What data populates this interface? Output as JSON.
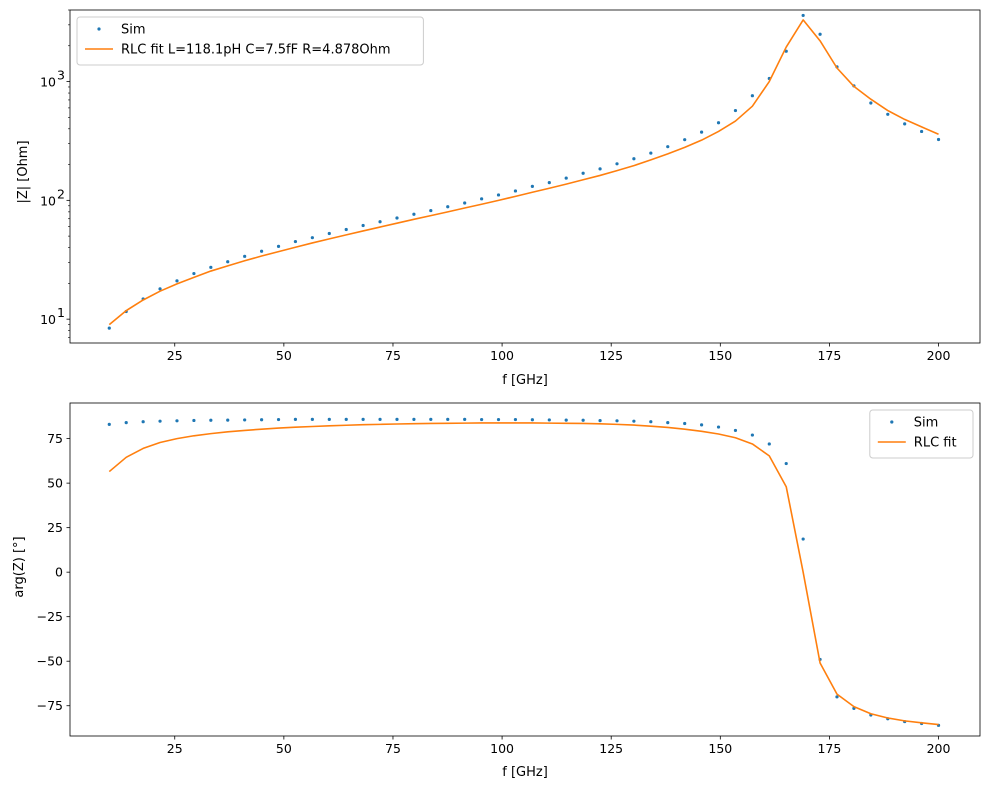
{
  "chart_data": [
    {
      "type": "line",
      "yscale": "log",
      "xlabel": "f [GHz]",
      "ylabel": "|Z| [Ohm]",
      "xlim": [
        1,
        209.5
      ],
      "ylim": [
        6.3,
        4000
      ],
      "xticks": [
        25,
        50,
        75,
        100,
        125,
        150,
        175,
        200
      ],
      "xtick_labels": [
        "25",
        "50",
        "75",
        "100",
        "125",
        "150",
        "175",
        "200"
      ],
      "yticks": [
        10,
        100,
        1000
      ],
      "ytick_labels": [
        "10",
        "10",
        "10"
      ],
      "ytick_exponents": [
        "1",
        "2",
        "3"
      ],
      "legend_position": "upper-left",
      "series": [
        {
          "name": "Sim",
          "style": "markers",
          "color": "#1f77b4",
          "x": [
            10,
            13.88,
            17.76,
            21.63,
            25.51,
            29.39,
            33.27,
            37.14,
            41.02,
            44.9,
            48.78,
            52.65,
            56.53,
            60.41,
            64.29,
            68.16,
            72.04,
            75.92,
            79.8,
            83.67,
            87.55,
            91.43,
            95.31,
            99.18,
            103.06,
            106.94,
            110.82,
            114.69,
            118.57,
            122.45,
            126.33,
            130.2,
            134.08,
            137.96,
            141.84,
            145.71,
            149.59,
            153.47,
            157.35,
            161.22,
            165.1,
            168.98,
            172.86,
            176.73,
            180.61,
            184.49,
            188.37,
            192.24,
            196.12,
            200
          ],
          "y": [
            8.4,
            11.6,
            14.8,
            18,
            21,
            24.2,
            27.3,
            30.4,
            33.8,
            37.3,
            41,
            45,
            48.5,
            52.6,
            56.8,
            61.4,
            66,
            71,
            76.4,
            82,
            88.3,
            95,
            103,
            111,
            120,
            131,
            141,
            154,
            169,
            184,
            203,
            224,
            250,
            283,
            324,
            375,
            450,
            570,
            760,
            1060,
            1800,
            3600,
            2500,
            1330,
            920,
            660,
            530,
            440,
            380,
            325
          ]
        },
        {
          "name": "RLC fit  L=118.1pH  C=7.5fF  R=4.878Ohm",
          "style": "line",
          "color": "#ff7f0e",
          "x": [
            10,
            13.88,
            17.76,
            21.63,
            25.51,
            29.39,
            33.27,
            37.14,
            41.02,
            44.9,
            48.78,
            52.65,
            56.53,
            60.41,
            64.29,
            68.16,
            72.04,
            75.92,
            79.8,
            83.67,
            87.55,
            91.43,
            95.31,
            99.18,
            103.06,
            106.94,
            110.82,
            114.69,
            118.57,
            122.45,
            126.33,
            130.2,
            134.08,
            137.96,
            141.84,
            145.71,
            149.59,
            153.47,
            157.35,
            161.22,
            165.1,
            168.98,
            172.86,
            176.73,
            180.61,
            184.49,
            188.37,
            192.24,
            196.12,
            200
          ],
          "y": [
            9,
            11.8,
            14.5,
            17.2,
            19.8,
            22.5,
            25.4,
            28.1,
            31,
            34,
            37,
            40.3,
            43.8,
            47.4,
            51.2,
            55.3,
            59.6,
            64.2,
            69.2,
            74.4,
            80,
            86.2,
            92.7,
            100,
            108,
            117,
            126.5,
            137,
            149,
            162,
            178,
            196,
            219,
            246,
            279,
            321,
            380,
            465,
            620,
            1000,
            1950,
            3300,
            2200,
            1300,
            910,
            710,
            570,
            480,
            415,
            360
          ]
        }
      ]
    },
    {
      "type": "line",
      "yscale": "linear",
      "xlabel": "f [GHz]",
      "ylabel": "arg(Z) [°]",
      "xlim": [
        1,
        209.5
      ],
      "ylim": [
        -92,
        95
      ],
      "xticks": [
        25,
        50,
        75,
        100,
        125,
        150,
        175,
        200
      ],
      "xtick_labels": [
        "25",
        "50",
        "75",
        "100",
        "125",
        "150",
        "175",
        "200"
      ],
      "yticks": [
        -75,
        -50,
        -25,
        0,
        25,
        50,
        75
      ],
      "ytick_labels": [
        "−75",
        "−50",
        "−25",
        "0",
        "25",
        "50",
        "75"
      ],
      "legend_position": "upper-right",
      "series": [
        {
          "name": "Sim",
          "style": "markers",
          "color": "#1f77b4",
          "x": [
            10,
            13.88,
            17.76,
            21.63,
            25.51,
            29.39,
            33.27,
            37.14,
            41.02,
            44.9,
            48.78,
            52.65,
            56.53,
            60.41,
            64.29,
            68.16,
            72.04,
            75.92,
            79.8,
            83.67,
            87.55,
            91.43,
            95.31,
            99.18,
            103.06,
            106.94,
            110.82,
            114.69,
            118.57,
            122.45,
            126.33,
            130.2,
            134.08,
            137.96,
            141.84,
            145.71,
            149.59,
            153.47,
            157.35,
            161.22,
            165.1,
            168.98,
            172.86,
            176.73,
            180.61,
            184.49,
            188.37,
            192.24,
            196.12,
            200
          ],
          "y": [
            83,
            84,
            84.5,
            84.8,
            85,
            85.2,
            85.3,
            85.4,
            85.5,
            85.6,
            85.7,
            85.8,
            85.8,
            85.8,
            85.8,
            85.8,
            85.8,
            85.8,
            85.8,
            85.8,
            85.8,
            85.8,
            85.7,
            85.7,
            85.7,
            85.6,
            85.5,
            85.4,
            85.3,
            85.1,
            85,
            84.8,
            84.5,
            84,
            83.5,
            82.7,
            81.5,
            79.6,
            77,
            72,
            61,
            18.6,
            -49,
            -70,
            -76.5,
            -80.2,
            -82.3,
            -83.9,
            -85,
            -86
          ]
        },
        {
          "name": "RLC fit",
          "style": "line",
          "color": "#ff7f0e",
          "x": [
            10,
            13.88,
            17.76,
            21.63,
            25.51,
            29.39,
            33.27,
            37.14,
            41.02,
            44.9,
            48.78,
            52.65,
            56.53,
            60.41,
            64.29,
            68.16,
            72.04,
            75.92,
            79.8,
            83.67,
            87.55,
            91.43,
            95.31,
            99.18,
            103.06,
            106.94,
            110.82,
            114.69,
            118.57,
            122.45,
            126.33,
            130.2,
            134.08,
            137.96,
            141.84,
            145.71,
            149.59,
            153.47,
            157.35,
            161.22,
            165.1,
            168.98,
            172.86,
            176.73,
            180.61,
            184.49,
            188.37,
            192.24,
            196.12,
            200
          ],
          "y": [
            56.5,
            64.5,
            69.5,
            72.8,
            75,
            76.6,
            77.8,
            78.8,
            79.6,
            80.3,
            80.9,
            81.4,
            81.8,
            82.2,
            82.5,
            82.8,
            83,
            83.2,
            83.4,
            83.5,
            83.6,
            83.7,
            83.8,
            83.8,
            83.8,
            83.8,
            83.7,
            83.6,
            83.5,
            83.3,
            83,
            82.6,
            82,
            81.3,
            80.3,
            79.1,
            77.6,
            75.5,
            72,
            65.3,
            48,
            0,
            -51,
            -68.5,
            -75.5,
            -79.5,
            -81.9,
            -83.5,
            -84.6,
            -85.6
          ]
        }
      ]
    }
  ]
}
